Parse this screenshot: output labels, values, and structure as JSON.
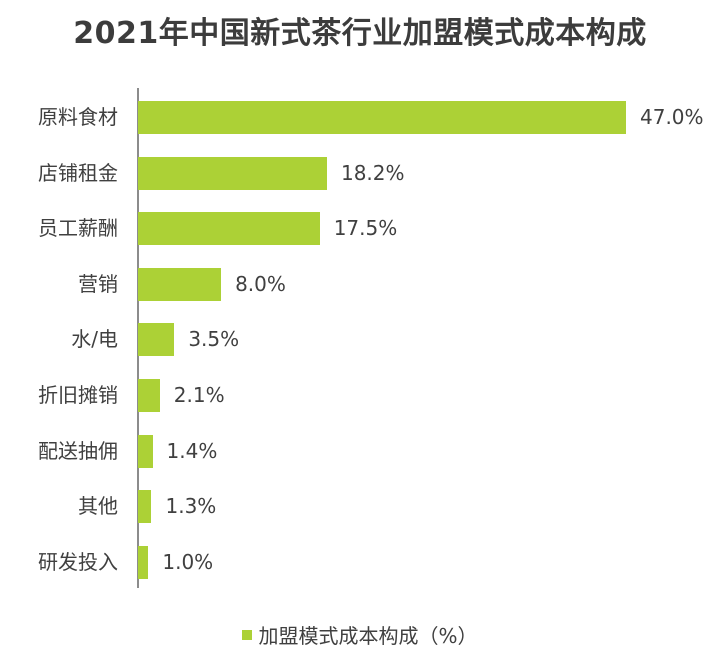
{
  "title": "2021年中国新式茶行业加盟模式成本构成",
  "legend": {
    "label": "加盟模式成本构成（%）",
    "color": "#acd136"
  },
  "style": {
    "bar_color": "#acd136",
    "axis_color": "#8c8c8c",
    "text_color": "#404040"
  },
  "chart_data": {
    "type": "bar",
    "orientation": "horizontal",
    "title": "2021年中国新式茶行业加盟模式成本构成",
    "xlabel": "",
    "ylabel": "",
    "unit": "%",
    "categories": [
      "原料食材",
      "店铺租金",
      "员工薪酬",
      "营销",
      "水/电",
      "折旧摊销",
      "配送抽佣",
      "其他",
      "研发投入"
    ],
    "values": [
      47.0,
      18.2,
      17.5,
      8.0,
      3.5,
      2.1,
      1.4,
      1.3,
      1.0
    ],
    "value_labels": [
      "47.0%",
      "18.2%",
      "17.5%",
      "8.0%",
      "3.5%",
      "2.1%",
      "1.4%",
      "1.3%",
      "1.0%"
    ],
    "series": [
      {
        "name": "加盟模式成本构成（%）",
        "values": [
          47.0,
          18.2,
          17.5,
          8.0,
          3.5,
          2.1,
          1.4,
          1.3,
          1.0
        ]
      }
    ],
    "xlim": [
      0,
      50
    ],
    "grid": false,
    "legend_position": "bottom"
  }
}
